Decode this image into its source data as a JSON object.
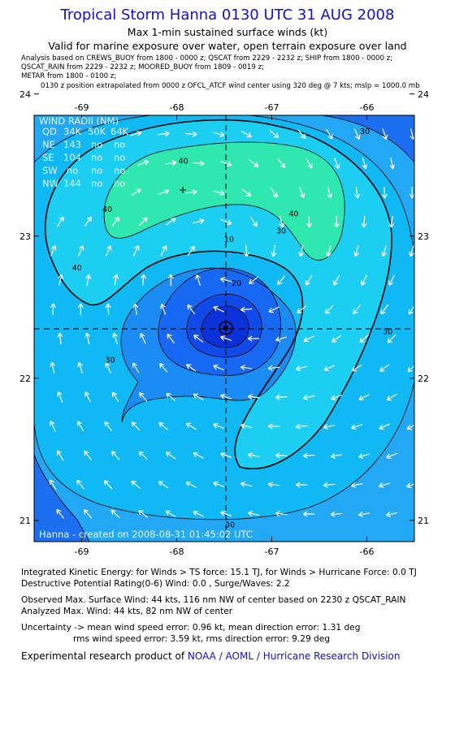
{
  "header": {
    "title": "Tropical Storm Hanna 0130 UTC 31 AUG 2008",
    "subtitle": "Max 1-min sustained surface winds (kt)",
    "subtitle2": "Valid for marine exposure over water, open terrain exposure over land",
    "meta1": "Analysis based on  CREWS_BUOY from 1800 - 0000 z;  QSCAT from 2229 - 2232 z;  SHIP from 1800 - 0000 z;",
    "meta2": "QSCAT_RAIN from 2229 - 2232 z;  MOORED_BUOY from 1809 - 0019 z;",
    "meta3": "METAR from 1800 - 0100 z;",
    "meta4": "0130 z position extrapolated from 0000 z OFCL_ATCF wind center using 320 deg @ 7 kts; mslp = 1000.0 mb"
  },
  "wind_radii": {
    "title": "WIND RADII (NM)",
    "columns": [
      "QD",
      "34K",
      "50K",
      "64K"
    ],
    "rows": [
      [
        "NE",
        "143",
        "no",
        "no"
      ],
      [
        "SE",
        "104",
        "no",
        "no"
      ],
      [
        "SW",
        "no",
        "no",
        "no"
      ],
      [
        "NW",
        "144",
        "no",
        "no"
      ]
    ]
  },
  "plot_credit": "Hanna - created on 2008-08-31 01:45:02 UTC",
  "colors": {
    "band_below_20": "#0a3ae6",
    "band_20_30": "#1a6ef5",
    "band_30_40": "#10b8f4",
    "band_40_50": "#2ee8b0",
    "band_outer": "#22a8f4"
  },
  "chart_data": {
    "type": "contour",
    "x_ticks": [
      "-69",
      "-68",
      "-67",
      "-66"
    ],
    "y_ticks": [
      "24",
      "23",
      "22",
      "21"
    ],
    "x_tick_values": [
      -69,
      -68,
      -67,
      -66
    ],
    "y_tick_values": [
      24,
      23,
      22,
      21
    ],
    "xlim": [
      -69.5,
      -65.5
    ],
    "ylim": [
      20.85,
      23.85
    ],
    "storm_center": {
      "lon": -67.5,
      "lat": 22.83
    },
    "max_wind_marker": {
      "lon": -67.9,
      "lat": 23.15
    },
    "contour_labels": [
      {
        "text": "40",
        "lon": -67.93,
        "lat": 23.51
      },
      {
        "text": "40",
        "lon": -68.73,
        "lat": 23.17
      },
      {
        "text": "40",
        "lon": -66.77,
        "lat": 23.14
      },
      {
        "text": "40",
        "lon": -69.05,
        "lat": 22.76
      },
      {
        "text": "30",
        "lon": -66.02,
        "lat": 23.72
      },
      {
        "text": "30",
        "lon": -66.9,
        "lat": 23.02
      },
      {
        "text": "30",
        "lon": -68.7,
        "lat": 22.11
      },
      {
        "text": "30",
        "lon": -65.78,
        "lat": 22.31
      },
      {
        "text": "30",
        "lon": -67.44,
        "lat": 20.95
      },
      {
        "text": "20",
        "lon": -67.37,
        "lat": 22.65
      },
      {
        "text": "10",
        "lon": -67.45,
        "lat": 22.96
      }
    ]
  },
  "footer": {
    "ike": "Integrated Kinetic Energy:  for Winds > TS force: 15.1 TJ,  for Winds > Hurricane Force: 0.0 TJ",
    "dpr": "Destructive Potential Rating(0-6)   Wind: 0.0 , Surge/Waves: 2.2",
    "observed": "Observed Max. Surface Wind: 44 kts, 116 nm NW of center based on 2230 z QSCAT_RAIN",
    "analyzed": "Analyzed Max. Wind: 44 kts, 82 nm NW of center",
    "unc1": "Uncertainty -> mean wind speed error: 0.96 kt,   mean direction error: 1.31 deg",
    "unc2": "rms wind speed error: 3.59 kt,   rms direction error: 9.29 deg",
    "credit_prefix": "Experimental research product of ",
    "credit_org": "NOAA / AOML / Hurricane Research Division"
  }
}
